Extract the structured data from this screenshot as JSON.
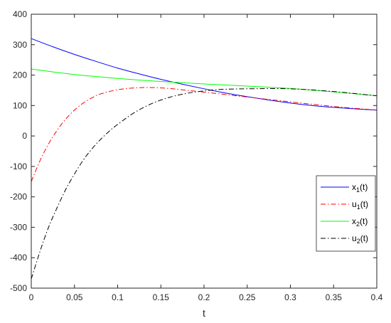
{
  "chart_data": {
    "type": "line",
    "xlabel": "t",
    "ylabel": "",
    "xlim": [
      0,
      0.4
    ],
    "ylim": [
      -500,
      400
    ],
    "xticks": [
      0,
      0.05,
      0.1,
      0.15,
      0.2,
      0.25,
      0.3,
      0.35,
      0.4
    ],
    "xtick_labels": [
      "0",
      "0.05",
      "0.1",
      "0.15",
      "0.2",
      "0.25",
      "0.3",
      "0.35",
      "0.4"
    ],
    "yticks": [
      -500,
      -400,
      -300,
      -200,
      -100,
      0,
      100,
      200,
      300,
      400
    ],
    "ytick_labels": [
      "-500",
      "-400",
      "-300",
      "-200",
      "-100",
      "0",
      "100",
      "200",
      "300",
      "400"
    ],
    "legend_position": "right",
    "series": [
      {
        "name": "x1(t)",
        "base": "x",
        "sub": "1",
        "suffix": "(t)",
        "color": "#0000ff",
        "style": "solid",
        "x": [
          0,
          0.025,
          0.05,
          0.075,
          0.1,
          0.125,
          0.15,
          0.175,
          0.2,
          0.225,
          0.25,
          0.275,
          0.3,
          0.325,
          0.35,
          0.375,
          0.4
        ],
        "y": [
          320,
          293,
          268,
          245,
          223,
          204,
          186,
          170,
          155,
          141,
          129,
          118,
          108,
          100,
          94,
          89,
          85
        ]
      },
      {
        "name": "u1(t)",
        "base": "u",
        "sub": "1",
        "suffix": "(t)",
        "color": "#ff0000",
        "style": "dashdot",
        "x": [
          0,
          0.01,
          0.02,
          0.03,
          0.04,
          0.05,
          0.06,
          0.07,
          0.08,
          0.1,
          0.12,
          0.14,
          0.16,
          0.18,
          0.2,
          0.25,
          0.3,
          0.35,
          0.4
        ],
        "y": [
          -150,
          -82,
          -26,
          19,
          56,
          85,
          108,
          125,
          138,
          152,
          158,
          159,
          156,
          150,
          144,
          128,
          112,
          97,
          85
        ]
      },
      {
        "name": "x2(t)",
        "base": "x",
        "sub": "2",
        "suffix": "(t)",
        "color": "#00ff00",
        "style": "solid",
        "x": [
          0,
          0.05,
          0.1,
          0.15,
          0.2,
          0.25,
          0.3,
          0.35,
          0.4
        ],
        "y": [
          220,
          202,
          189,
          179,
          171,
          164,
          156,
          145,
          132
        ]
      },
      {
        "name": "u2(t)",
        "base": "u",
        "sub": "2",
        "suffix": "(t)",
        "color": "#000000",
        "style": "dashdot",
        "x": [
          0,
          0.01,
          0.02,
          0.03,
          0.04,
          0.05,
          0.06,
          0.07,
          0.08,
          0.09,
          0.1,
          0.12,
          0.14,
          0.16,
          0.18,
          0.2,
          0.22,
          0.25,
          0.3,
          0.35,
          0.4
        ],
        "y": [
          -470,
          -380,
          -300,
          -235,
          -175,
          -125,
          -80,
          -43,
          -12,
          15,
          38,
          78,
          107,
          127,
          140,
          148,
          153,
          155,
          155,
          146,
          132
        ]
      }
    ]
  }
}
